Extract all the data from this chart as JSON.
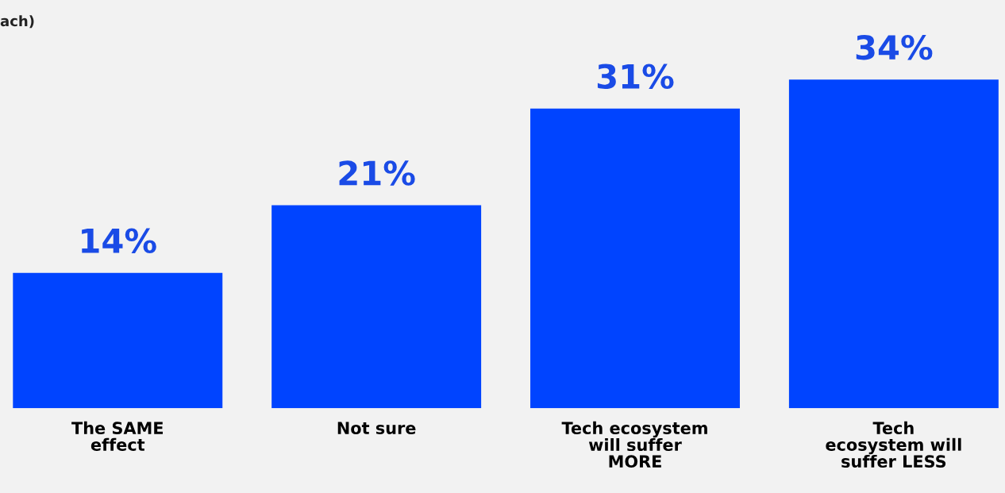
{
  "chart_data": {
    "type": "bar",
    "categories": [
      "The SAME\neffect",
      "Not sure",
      "Tech ecosystem\nwill suffer\nMORE",
      "Tech\necosystem will\nsuffer LESS"
    ],
    "values": [
      14,
      21,
      31,
      34
    ],
    "value_labels": [
      "14%",
      "21%",
      "31%",
      "34%"
    ],
    "color": "#0044ff",
    "tick_labels": "x",
    "grid": false,
    "legend": false,
    "annotations": [
      "ach)"
    ]
  }
}
